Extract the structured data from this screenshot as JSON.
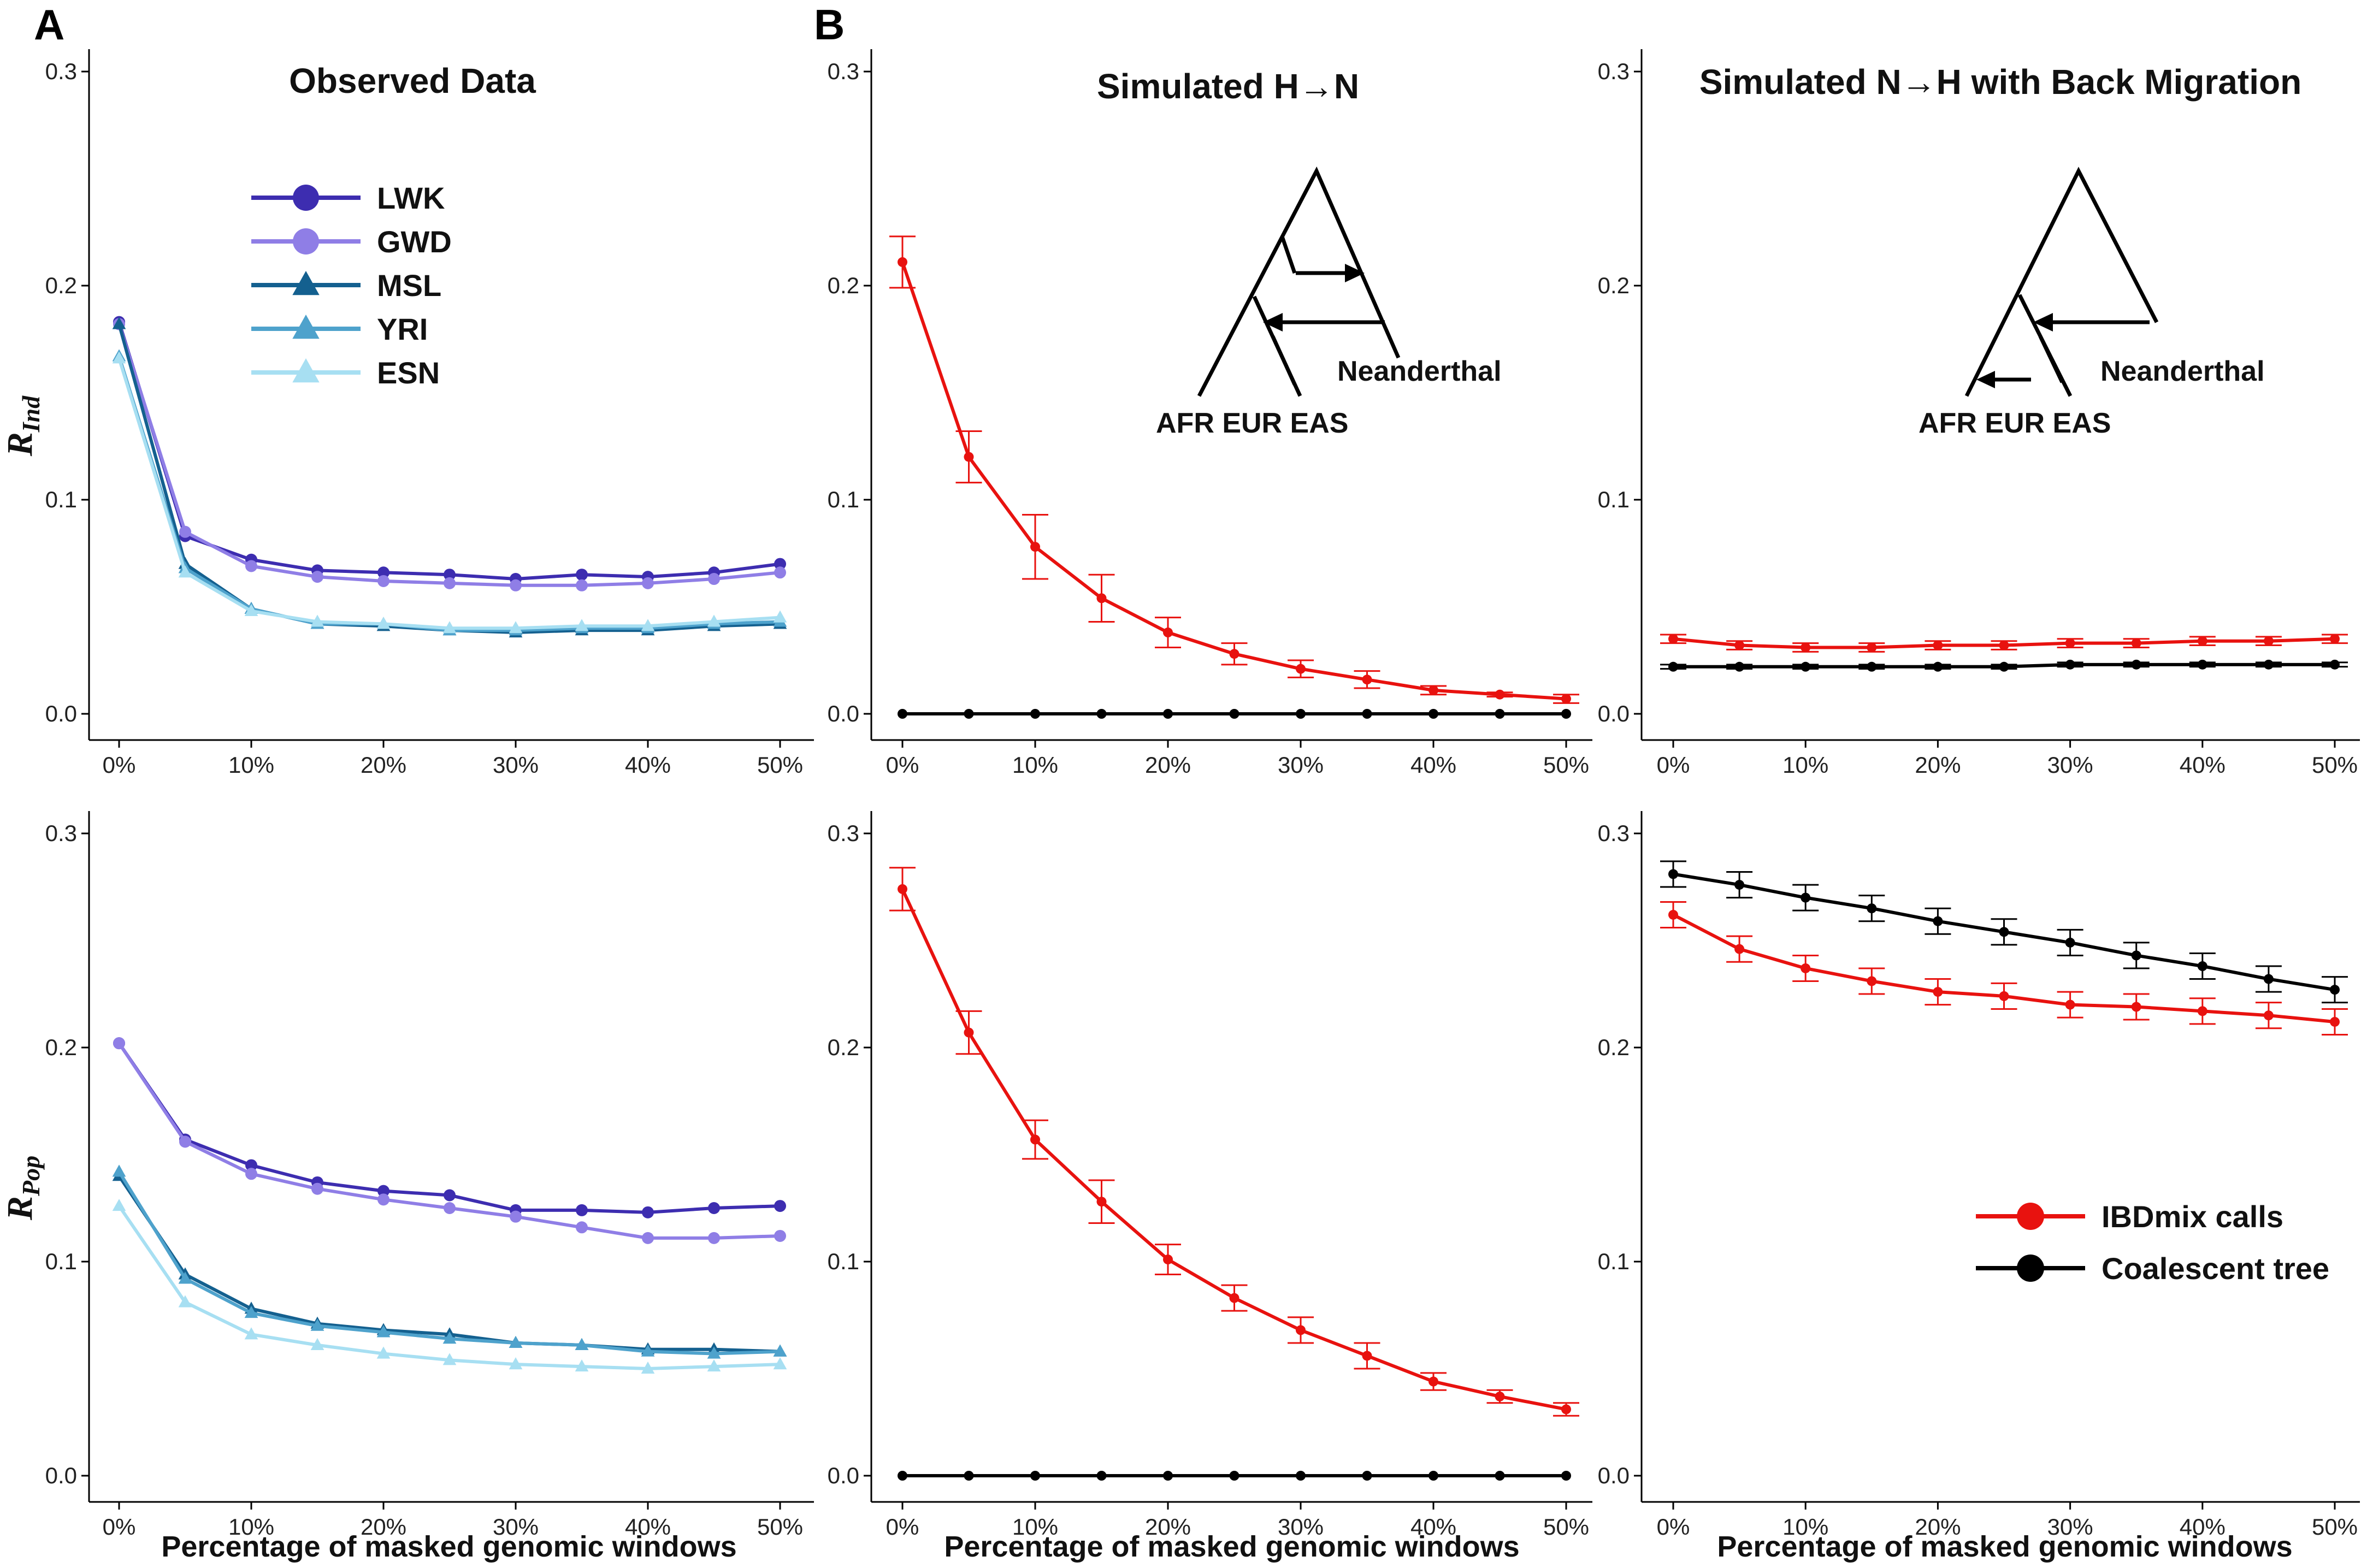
{
  "labels": {
    "panel_a": "A",
    "panel_b": "B",
    "title_observed": "Observed Data",
    "title_h_to_n": "Simulated H→N",
    "title_n_to_h": "Simulated N→H with Back Migration",
    "y_ind_main": "R",
    "y_ind_sub": "Ind",
    "y_pop_main": "R",
    "y_pop_sub": "Pop",
    "x_title": "Percentage of masked genomic windows"
  },
  "tree_labels": {
    "h_to_n": {
      "pops": "AFR EUR EAS",
      "archaic": "Neanderthal"
    },
    "n_to_h": {
      "pops": "AFR EUR EAS",
      "archaic": "Neanderthal"
    }
  },
  "legend_observed": [
    {
      "name": "LWK",
      "color": "#3d2db0",
      "marker": "circle"
    },
    {
      "name": "GWD",
      "color": "#8f7ee6",
      "marker": "circle"
    },
    {
      "name": "MSL",
      "color": "#14608f",
      "marker": "triangle"
    },
    {
      "name": "YRI",
      "color": "#4ea2cc",
      "marker": "triangle"
    },
    {
      "name": "ESN",
      "color": "#a7dff2",
      "marker": "triangle"
    }
  ],
  "legend_sim": [
    {
      "name": "IBDmix calls",
      "color": "#e8120f"
    },
    {
      "name": "Coalescent tree",
      "color": "#000000"
    }
  ],
  "chart_data": [
    {
      "id": "observed-rind",
      "type": "line",
      "title": "Observed Data",
      "ylabel": "R_Ind",
      "xlabel": "",
      "x": [
        "0%",
        "5%",
        "10%",
        "15%",
        "20%",
        "25%",
        "30%",
        "35%",
        "40%",
        "45%",
        "50%"
      ],
      "xticks": [
        "0%",
        "10%",
        "20%",
        "30%",
        "40%",
        "50%"
      ],
      "yticks": [
        "0.0",
        "0.1",
        "0.2",
        "0.3"
      ],
      "ylim": [
        -0.015,
        0.32
      ],
      "series": [
        {
          "name": "LWK",
          "values": [
            0.183,
            0.083,
            0.072,
            0.067,
            0.066,
            0.065,
            0.063,
            0.065,
            0.064,
            0.066,
            0.07
          ]
        },
        {
          "name": "GWD",
          "values": [
            0.182,
            0.085,
            0.069,
            0.064,
            0.062,
            0.061,
            0.06,
            0.06,
            0.061,
            0.063,
            0.066
          ]
        },
        {
          "name": "MSL",
          "values": [
            0.182,
            0.07,
            0.049,
            0.042,
            0.041,
            0.039,
            0.038,
            0.039,
            0.039,
            0.041,
            0.042
          ]
        },
        {
          "name": "YRI",
          "values": [
            0.167,
            0.068,
            0.049,
            0.042,
            0.042,
            0.039,
            0.039,
            0.04,
            0.04,
            0.042,
            0.043
          ]
        },
        {
          "name": "ESN",
          "values": [
            0.166,
            0.066,
            0.048,
            0.043,
            0.042,
            0.04,
            0.04,
            0.041,
            0.041,
            0.043,
            0.045
          ]
        }
      ]
    },
    {
      "id": "sim-hn-rind",
      "type": "line",
      "title": "Simulated H→N",
      "ylabel": "",
      "xlabel": "",
      "x": [
        "0%",
        "5%",
        "10%",
        "15%",
        "20%",
        "25%",
        "30%",
        "35%",
        "40%",
        "45%",
        "50%"
      ],
      "xticks": [
        "0%",
        "10%",
        "20%",
        "30%",
        "40%",
        "50%"
      ],
      "yticks": [
        "0.0",
        "0.1",
        "0.2",
        "0.3"
      ],
      "ylim": [
        -0.015,
        0.32
      ],
      "series": [
        {
          "name": "IBDmix calls",
          "values": [
            0.211,
            0.12,
            0.078,
            0.054,
            0.038,
            0.028,
            0.021,
            0.016,
            0.011,
            0.009,
            0.007
          ],
          "err": [
            0.012,
            0.012,
            0.015,
            0.011,
            0.007,
            0.005,
            0.004,
            0.004,
            0.002,
            0.001,
            0.002
          ]
        },
        {
          "name": "Coalescent tree",
          "values": [
            0,
            0,
            0,
            0,
            0,
            0,
            0,
            0,
            0,
            0,
            0
          ]
        }
      ]
    },
    {
      "id": "sim-nh-rind",
      "type": "line",
      "title": "Simulated N→H with Back Migration",
      "ylabel": "",
      "xlabel": "",
      "x": [
        "0%",
        "5%",
        "10%",
        "15%",
        "20%",
        "25%",
        "30%",
        "35%",
        "40%",
        "45%",
        "50%"
      ],
      "xticks": [
        "0%",
        "10%",
        "20%",
        "30%",
        "40%",
        "50%"
      ],
      "yticks": [
        "0.0",
        "0.1",
        "0.2",
        "0.3"
      ],
      "ylim": [
        -0.015,
        0.32
      ],
      "series": [
        {
          "name": "IBDmix calls",
          "values": [
            0.035,
            0.032,
            0.031,
            0.031,
            0.032,
            0.032,
            0.033,
            0.033,
            0.034,
            0.034,
            0.035
          ],
          "err": [
            0.002,
            0.002,
            0.002,
            0.002,
            0.002,
            0.002,
            0.002,
            0.002,
            0.002,
            0.002,
            0.002
          ]
        },
        {
          "name": "Coalescent tree",
          "values": [
            0.022,
            0.022,
            0.022,
            0.022,
            0.022,
            0.022,
            0.023,
            0.023,
            0.023,
            0.023,
            0.023
          ],
          "err": [
            0.001,
            0.001,
            0.001,
            0.001,
            0.001,
            0.001,
            0.001,
            0.001,
            0.001,
            0.001,
            0.001
          ]
        }
      ]
    },
    {
      "id": "observed-rpop",
      "type": "line",
      "title": "",
      "ylabel": "R_Pop",
      "xlabel": "Percentage of masked genomic windows",
      "x": [
        "0%",
        "5%",
        "10%",
        "15%",
        "20%",
        "25%",
        "30%",
        "35%",
        "40%",
        "45%",
        "50%"
      ],
      "xticks": [
        "0%",
        "10%",
        "20%",
        "30%",
        "40%",
        "50%"
      ],
      "yticks": [
        "0.0",
        "0.1",
        "0.2",
        "0.3"
      ],
      "ylim": [
        -0.015,
        0.32
      ],
      "series": [
        {
          "name": "LWK",
          "values": [
            0.202,
            0.157,
            0.145,
            0.137,
            0.133,
            0.131,
            0.124,
            0.124,
            0.123,
            0.125,
            0.126
          ]
        },
        {
          "name": "GWD",
          "values": [
            0.202,
            0.156,
            0.141,
            0.134,
            0.129,
            0.125,
            0.121,
            0.116,
            0.111,
            0.111,
            0.112
          ]
        },
        {
          "name": "MSL",
          "values": [
            0.14,
            0.094,
            0.078,
            0.071,
            0.068,
            0.066,
            0.062,
            0.061,
            0.059,
            0.059,
            0.058
          ]
        },
        {
          "name": "YRI",
          "values": [
            0.142,
            0.092,
            0.076,
            0.07,
            0.067,
            0.064,
            0.062,
            0.061,
            0.058,
            0.057,
            0.058
          ]
        },
        {
          "name": "ESN",
          "values": [
            0.126,
            0.081,
            0.066,
            0.061,
            0.057,
            0.054,
            0.052,
            0.051,
            0.05,
            0.051,
            0.052
          ]
        }
      ]
    },
    {
      "id": "sim-hn-rpop",
      "type": "line",
      "title": "",
      "ylabel": "",
      "xlabel": "Percentage of masked genomic windows",
      "x": [
        "0%",
        "5%",
        "10%",
        "15%",
        "20%",
        "25%",
        "30%",
        "35%",
        "40%",
        "45%",
        "50%"
      ],
      "xticks": [
        "0%",
        "10%",
        "20%",
        "30%",
        "40%",
        "50%"
      ],
      "yticks": [
        "0.0",
        "0.1",
        "0.2",
        "0.3"
      ],
      "ylim": [
        -0.015,
        0.32
      ],
      "series": [
        {
          "name": "IBDmix calls",
          "values": [
            0.274,
            0.207,
            0.157,
            0.128,
            0.101,
            0.083,
            0.068,
            0.056,
            0.044,
            0.037,
            0.031
          ],
          "err": [
            0.01,
            0.01,
            0.009,
            0.01,
            0.007,
            0.006,
            0.006,
            0.006,
            0.004,
            0.003,
            0.003
          ]
        },
        {
          "name": "Coalescent tree",
          "values": [
            0,
            0,
            0,
            0,
            0,
            0,
            0,
            0,
            0,
            0,
            0
          ]
        }
      ]
    },
    {
      "id": "sim-nh-rpop",
      "type": "line",
      "title": "",
      "ylabel": "",
      "xlabel": "Percentage of masked genomic windows",
      "x": [
        "0%",
        "5%",
        "10%",
        "15%",
        "20%",
        "25%",
        "30%",
        "35%",
        "40%",
        "45%",
        "50%"
      ],
      "xticks": [
        "0%",
        "10%",
        "20%",
        "30%",
        "40%",
        "50%"
      ],
      "yticks": [
        "0.0",
        "0.1",
        "0.2",
        "0.3"
      ],
      "ylim": [
        -0.015,
        0.32
      ],
      "series": [
        {
          "name": "IBDmix calls",
          "values": [
            0.262,
            0.246,
            0.237,
            0.231,
            0.226,
            0.224,
            0.22,
            0.219,
            0.217,
            0.215,
            0.212
          ],
          "err": [
            0.006,
            0.006,
            0.006,
            0.006,
            0.006,
            0.006,
            0.006,
            0.006,
            0.006,
            0.006,
            0.006
          ]
        },
        {
          "name": "Coalescent tree",
          "values": [
            0.281,
            0.276,
            0.27,
            0.265,
            0.259,
            0.254,
            0.249,
            0.243,
            0.238,
            0.232,
            0.227
          ],
          "err": [
            0.006,
            0.006,
            0.006,
            0.006,
            0.006,
            0.006,
            0.006,
            0.006,
            0.006,
            0.006,
            0.006
          ]
        }
      ]
    }
  ]
}
